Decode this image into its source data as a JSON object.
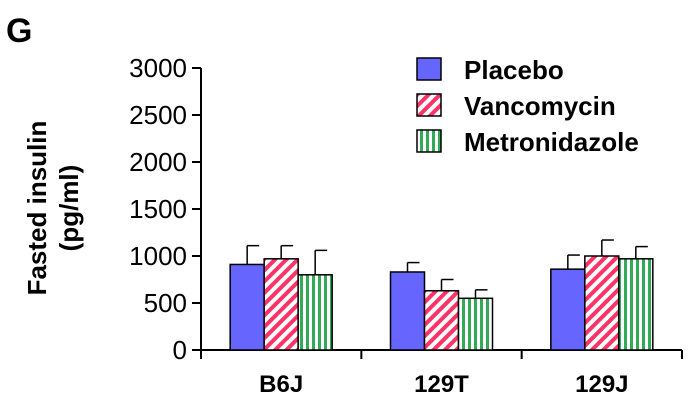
{
  "panel_label": "G",
  "chart_data": {
    "type": "bar",
    "categories": [
      "B6J",
      "129T",
      "129J"
    ],
    "ylabel_line1": "Fasted insulin",
    "ylabel_line2": "(pg/ml)",
    "ylim": [
      0,
      3000
    ],
    "yticks": [
      0,
      500,
      1000,
      1500,
      2000,
      2500,
      3000
    ],
    "yticks_labels": [
      "0",
      "500",
      "1000",
      "1500",
      "2000",
      "2500",
      "3000"
    ],
    "legend_position": "top-right",
    "grid": false,
    "series": [
      {
        "name": "Placebo",
        "values": [
          910,
          830,
          860
        ],
        "errors": [
          200,
          100,
          150
        ],
        "color": "#6666ff",
        "pattern": "solid"
      },
      {
        "name": "Vancomycin",
        "values": [
          970,
          630,
          1000
        ],
        "errors": [
          140,
          120,
          170
        ],
        "color": "#ff3366",
        "pattern": "diagonal"
      },
      {
        "name": "Metronidazole",
        "values": [
          800,
          550,
          970
        ],
        "errors": [
          260,
          90,
          130
        ],
        "color": "#33aa55",
        "pattern": "vertical"
      }
    ]
  }
}
